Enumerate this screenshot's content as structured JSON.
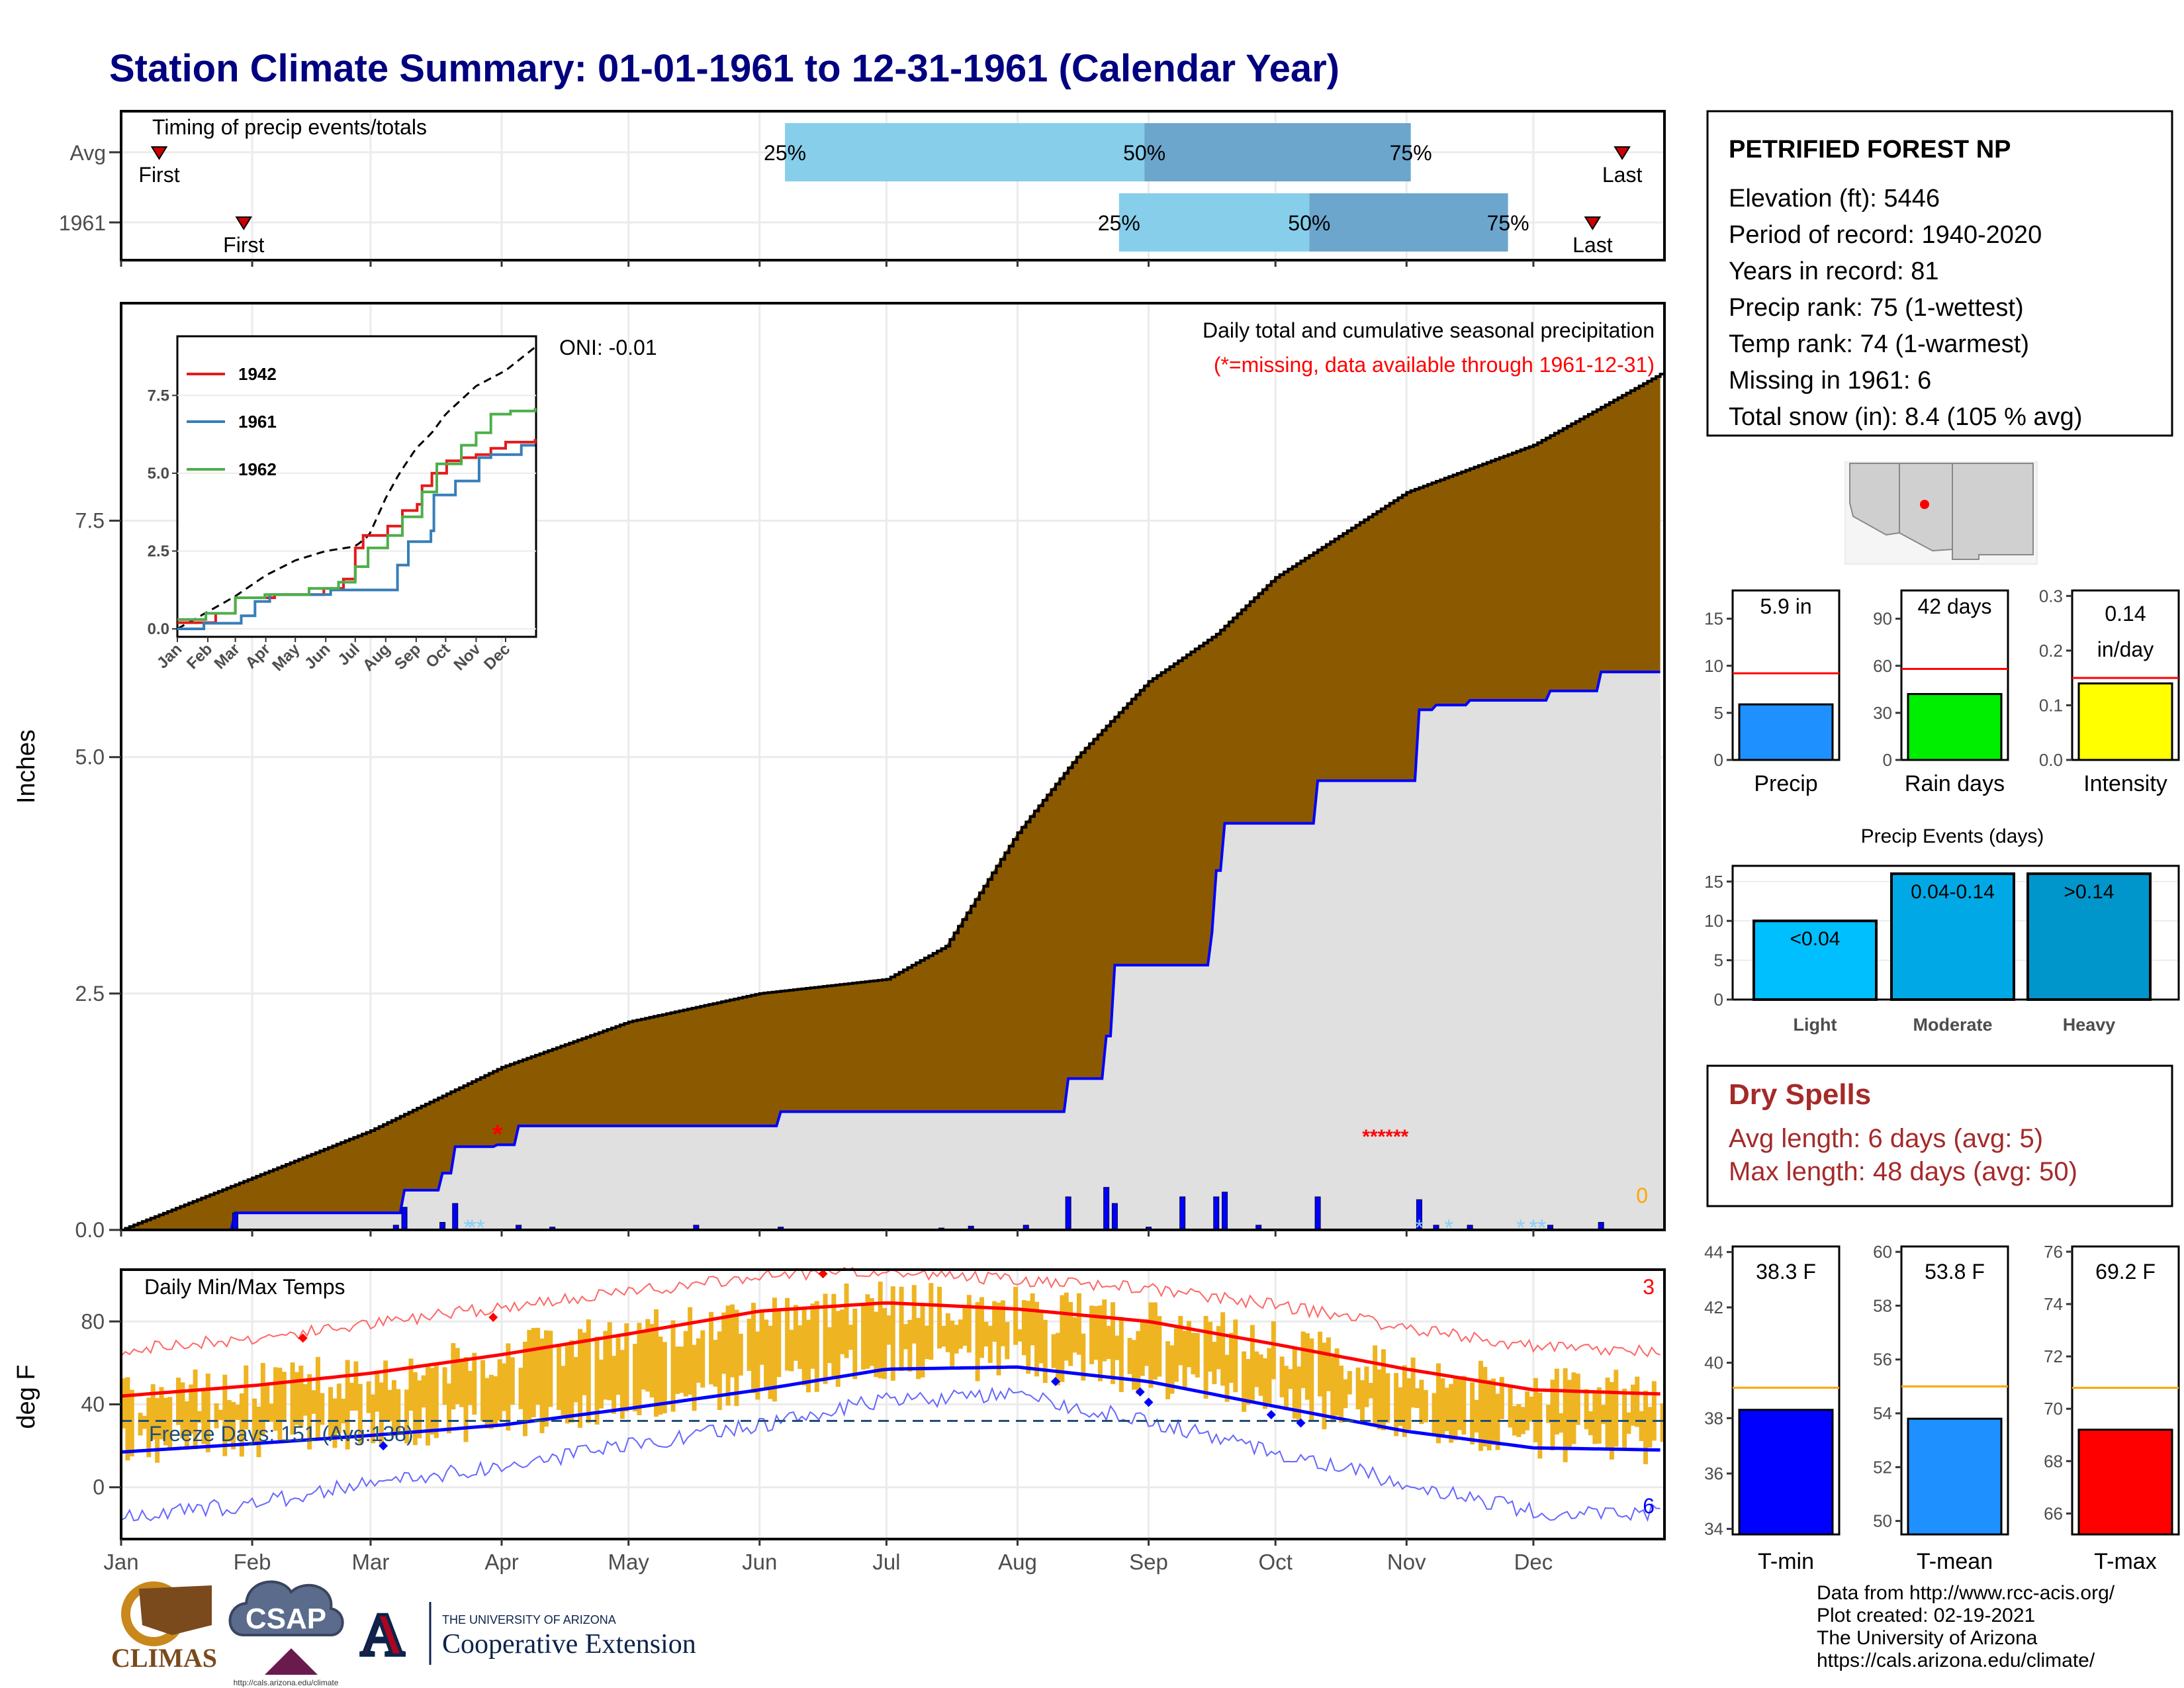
{
  "title": "Station Climate Summary: 01-01-1961 to 12-31-1961 (Calendar Year)",
  "timing": {
    "label": "Timing of precip events/totals",
    "rows": [
      {
        "name": "Avg",
        "first_doy": 10,
        "last_doy": 356,
        "q25_doy": 158,
        "q50_doy": 243,
        "q75_doy": 306,
        "first_label": "First",
        "last_label": "Last",
        "q25_label": "25%",
        "q50_label": "50%",
        "q75_label": "75%"
      },
      {
        "name": "1961",
        "first_doy": 30,
        "last_doy": 349,
        "q25_doy": 237,
        "q50_doy": 282,
        "q75_doy": 329,
        "first_label": "First",
        "last_label": "Last",
        "q25_label": "25%",
        "q50_label": "50%",
        "q75_label": "75%"
      }
    ]
  },
  "station": {
    "name": "PETRIFIED FOREST NP",
    "lines": [
      "Elevation (ft): 5446",
      "Period of record: 1940-2020",
      "Years in record: 81",
      "Precip rank: 75 (1-wettest)",
      "Temp rank: 74 (1-warmest)",
      "Missing in 1961: 6",
      "Total snow (in): 8.4 (105 % avg)"
    ]
  },
  "precip_panel": {
    "ylabel": "Inches",
    "note1": "Daily total and cumulative seasonal precipitation",
    "note2": "(*=missing, data available through 1961-12-31)",
    "oni": "ONI: -0.01",
    "corner_count": "0",
    "yticks": [
      "0.0",
      "2.5",
      "5.0",
      "7.5"
    ]
  },
  "inset": {
    "yticks": [
      "0.0",
      "2.5",
      "5.0",
      "7.5"
    ],
    "months": [
      "Jan",
      "Feb",
      "Mar",
      "Apr",
      "May",
      "Jun",
      "Jul",
      "Aug",
      "Sep",
      "Oct",
      "Nov",
      "Dec"
    ],
    "legend": [
      {
        "name": "1942",
        "color": "#e41a1c"
      },
      {
        "name": "1961",
        "color": "#377eb8"
      },
      {
        "name": "1962",
        "color": "#4daf4a"
      }
    ]
  },
  "temp_panel": {
    "ylabel": "deg F",
    "label": "Daily Min/Max Temps",
    "freeze_label": "Freeze Days: 151 (Avg:138)",
    "record_high_count": "3",
    "record_low_count": "6",
    "yticks": [
      "0",
      "40",
      "80"
    ]
  },
  "months": [
    "Jan",
    "Feb",
    "Mar",
    "Apr",
    "May",
    "Jun",
    "Jul",
    "Aug",
    "Sep",
    "Oct",
    "Nov",
    "Dec"
  ],
  "summary_bars": [
    {
      "name": "Precip",
      "value_label": "5.9 in",
      "value": 5.9,
      "avg": 9.2,
      "ymax": 18,
      "ticks": [
        "0",
        "5",
        "10",
        "15"
      ],
      "color": "#1e90ff"
    },
    {
      "name": "Rain days",
      "value_label": "42 days",
      "value": 42,
      "avg": 58,
      "ymax": 108,
      "ticks": [
        "0",
        "30",
        "60",
        "90"
      ],
      "color": "#00ee00"
    },
    {
      "name": "Intensity",
      "value_label_1": "0.14",
      "value_label_2": "in/day",
      "value": 0.14,
      "avg": 0.15,
      "ymax": 0.31,
      "ticks": [
        "0.0",
        "0.1",
        "0.2",
        "0.3"
      ],
      "color": "#ffff00"
    }
  ],
  "events": {
    "title": "Precip Events (days)",
    "ticks": [
      "0",
      "5",
      "10",
      "15"
    ],
    "bars": [
      {
        "name": "Light",
        "label": "<0.04",
        "value": 10,
        "color": "#00bfff"
      },
      {
        "name": "Moderate",
        "label": "0.04-0.14",
        "value": 16,
        "color": "#00a9e6"
      },
      {
        "name": "Heavy",
        "label": ">0.14",
        "value": 16,
        "color": "#0096cc"
      }
    ]
  },
  "dry_spells": {
    "title": "Dry Spells",
    "avg_line": "Avg length: 6 days (avg: 5)",
    "max_line": "Max length: 48 days (avg: 50)"
  },
  "temp_bars": [
    {
      "name": "T-min",
      "value_label": "38.3 F",
      "value": 38.3,
      "avg": 39.1,
      "ymin": 33.8,
      "ymax": 44.2,
      "ticks": [
        "34",
        "36",
        "38",
        "40",
        "42",
        "44"
      ],
      "color": "#0000ff"
    },
    {
      "name": "T-mean",
      "value_label": "53.8 F",
      "value": 53.8,
      "avg": 55.0,
      "ymin": 49.5,
      "ymax": 60.2,
      "ticks": [
        "50",
        "52",
        "54",
        "56",
        "58",
        "60"
      ],
      "color": "#1e90ff"
    },
    {
      "name": "T-max",
      "value_label": "69.2 F",
      "value": 69.2,
      "avg": 70.8,
      "ymin": 65.2,
      "ymax": 76.2,
      "ticks": [
        "66",
        "68",
        "70",
        "72",
        "74",
        "76"
      ],
      "color": "#ff0000"
    }
  ],
  "credits": [
    "Data from http://www.rcc-acis.org/",
    "Plot created: 02-19-2021",
    "The University of Arizona",
    "https://cals.arizona.edu/climate/"
  ],
  "logos": {
    "climas": "CLIMAS",
    "csap": "CSAP",
    "csap_url": "http://cals.arizona.edu/climate",
    "ua_line1": "THE UNIVERSITY OF ARIZONA",
    "ua_line2": "Cooperative Extension",
    "ua_letter": "A"
  },
  "chart_data": [
    {
      "type": "area",
      "title": "Daily total and cumulative seasonal precipitation",
      "ylabel": "Inches",
      "ylim": [
        0,
        9.8
      ],
      "x_unit": "day of year 1961",
      "series": [
        {
          "name": "average cumulative",
          "x": [
            1,
            32,
            60,
            91,
            121,
            152,
            182,
            196,
            213,
            227,
            244,
            260,
            274,
            305,
            335,
            365
          ],
          "values": [
            0,
            0.55,
            1.05,
            1.72,
            2.2,
            2.5,
            2.65,
            3.0,
            4.2,
            5.0,
            5.8,
            6.3,
            6.9,
            7.8,
            8.3,
            9.05
          ]
        },
        {
          "name": "1961 cumulative",
          "x": [
            1,
            28,
            66,
            68,
            77,
            80,
            90,
            95,
            137,
            157,
            215,
            225,
            234,
            236,
            259,
            260,
            262,
            284,
            308,
            312,
            320,
            339,
            351,
            365
          ],
          "values": [
            0,
            0.18,
            0.18,
            0.42,
            0.6,
            0.88,
            0.9,
            1.1,
            1.1,
            1.25,
            1.25,
            1.6,
            2.05,
            2.8,
            3.15,
            3.8,
            4.3,
            4.75,
            5.5,
            5.55,
            5.6,
            5.7,
            5.9,
            5.9
          ]
        }
      ],
      "daily": [
        {
          "x": 28,
          "value": 0.18
        },
        {
          "x": 66,
          "value": 0.05
        },
        {
          "x": 68,
          "value": 0.24
        },
        {
          "x": 77,
          "value": 0.08
        },
        {
          "x": 80,
          "value": 0.28
        },
        {
          "x": 95,
          "value": 0.05
        },
        {
          "x": 103,
          "value": 0.03
        },
        {
          "x": 137,
          "value": 0.05
        },
        {
          "x": 157,
          "value": 0.03
        },
        {
          "x": 195,
          "value": 0.02
        },
        {
          "x": 202,
          "value": 0.04
        },
        {
          "x": 215,
          "value": 0.05
        },
        {
          "x": 225,
          "value": 0.35
        },
        {
          "x": 234,
          "value": 0.45
        },
        {
          "x": 236,
          "value": 0.28
        },
        {
          "x": 244,
          "value": 0.03
        },
        {
          "x": 252,
          "value": 0.35
        },
        {
          "x": 260,
          "value": 0.35
        },
        {
          "x": 262,
          "value": 0.4
        },
        {
          "x": 270,
          "value": 0.05
        },
        {
          "x": 284,
          "value": 0.35
        },
        {
          "x": 308,
          "value": 0.32
        },
        {
          "x": 312,
          "value": 0.05
        },
        {
          "x": 320,
          "value": 0.05
        },
        {
          "x": 339,
          "value": 0.05
        },
        {
          "x": 351,
          "value": 0.08
        }
      ]
    },
    {
      "type": "line",
      "title": "Daily Min/Max Temps",
      "ylabel": "deg F",
      "ylim": [
        -25,
        105
      ],
      "freeze_threshold": 32,
      "series": [
        {
          "name": "normal max",
          "x": [
            1,
            32,
            60,
            91,
            121,
            152,
            182,
            213,
            244,
            274,
            305,
            335,
            365
          ],
          "values": [
            44,
            49,
            55,
            64,
            74,
            85,
            89,
            86,
            80,
            69,
            57,
            47,
            45
          ]
        },
        {
          "name": "normal min",
          "x": [
            1,
            32,
            60,
            91,
            121,
            152,
            182,
            213,
            244,
            274,
            305,
            335,
            365
          ],
          "values": [
            17,
            21,
            25,
            30,
            38,
            47,
            57,
            58,
            51,
            39,
            27,
            19,
            18
          ]
        },
        {
          "name": "record max",
          "x": [
            1,
            32,
            60,
            91,
            121,
            152,
            182,
            213,
            244,
            274,
            305,
            335,
            365
          ],
          "values": [
            66,
            72,
            79,
            87,
            94,
            102,
            104,
            100,
            96,
            88,
            77,
            68,
            65
          ]
        },
        {
          "name": "record min",
          "x": [
            1,
            32,
            60,
            91,
            121,
            152,
            182,
            213,
            244,
            274,
            305,
            335,
            365
          ],
          "values": [
            -15,
            -8,
            2,
            10,
            20,
            30,
            42,
            44,
            32,
            17,
            2,
            -12,
            -12
          ]
        }
      ]
    },
    {
      "type": "bar",
      "categories": [
        "Precip",
        "Rain days",
        "Intensity"
      ],
      "values": [
        5.9,
        42,
        0.14
      ],
      "avg": [
        9.2,
        58,
        0.15
      ]
    },
    {
      "type": "bar",
      "title": "Precip Events (days)",
      "categories": [
        "Light",
        "Moderate",
        "Heavy"
      ],
      "values": [
        10,
        16,
        16
      ]
    },
    {
      "type": "bar",
      "categories": [
        "T-min",
        "T-mean",
        "T-max"
      ],
      "values": [
        38.3,
        53.8,
        69.2
      ],
      "avg": [
        39.1,
        55.0,
        70.8
      ]
    }
  ]
}
